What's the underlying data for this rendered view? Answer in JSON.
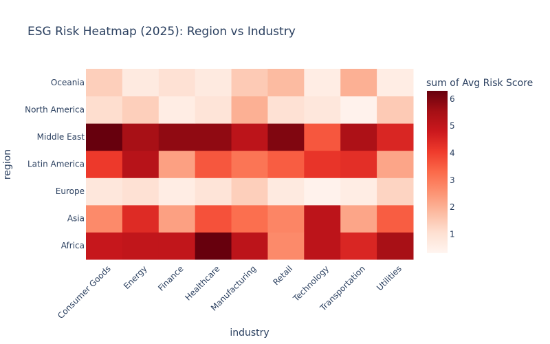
{
  "chart_data": {
    "type": "heatmap",
    "title": "ESG Risk Heatmap (2025): Region vs Industry",
    "xlabel": "industry",
    "ylabel": "region",
    "colorbar_title": "sum of Avg Risk Score",
    "colorscale": "Reds",
    "zlim": [
      0.3,
      6.3
    ],
    "colorbar_ticks": [
      1,
      2,
      3,
      4,
      5,
      6
    ],
    "x": [
      "Consumer Goods",
      "Energy",
      "Finance",
      "Healthcare",
      "Manufacturing",
      "Retail",
      "Technology",
      "Transportation",
      "Utilities"
    ],
    "y": [
      "Africa",
      "Asia",
      "Europe",
      "Latin America",
      "Middle East",
      "North America",
      "Oceania"
    ],
    "z": [
      [
        4.9,
        5.0,
        5.0,
        6.3,
        5.1,
        2.7,
        5.1,
        4.5,
        5.5
      ],
      [
        2.7,
        4.4,
        2.3,
        3.7,
        3.2,
        2.8,
        5.1,
        2.2,
        3.5
      ],
      [
        0.8,
        1.0,
        0.6,
        0.9,
        1.4,
        0.7,
        0.4,
        0.6,
        1.3
      ],
      [
        4.1,
        5.2,
        2.3,
        3.6,
        3.1,
        3.5,
        4.2,
        4.3,
        2.2
      ],
      [
        6.3,
        5.5,
        5.8,
        5.8,
        5.1,
        6.0,
        3.6,
        5.4,
        4.5
      ],
      [
        1.1,
        1.4,
        0.6,
        0.9,
        2.0,
        1.0,
        0.8,
        0.4,
        1.5
      ],
      [
        1.4,
        0.7,
        1.0,
        0.7,
        1.5,
        1.8,
        0.6,
        2.0,
        0.6
      ]
    ]
  }
}
